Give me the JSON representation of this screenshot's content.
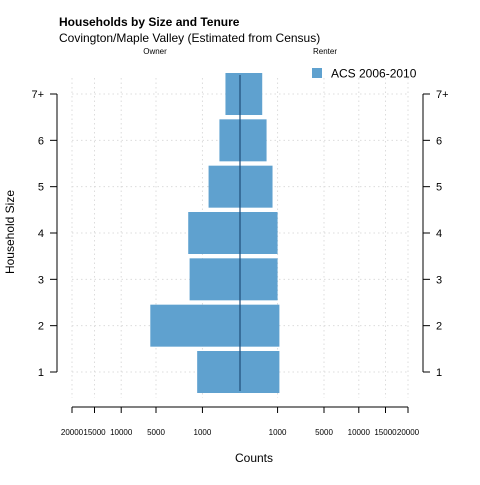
{
  "chart_data": {
    "type": "bar",
    "orientation": "horizontal",
    "layout": "back-to-back population pyramid",
    "title": "Households by Size and Tenure",
    "subtitle": "Covington/Maple Valley (Estimated from Census)",
    "left_group_label": "Owner",
    "right_group_label": "Renter",
    "xlabel": "Counts",
    "ylabel": "Household Size",
    "categories": [
      "1",
      "2",
      "3",
      "4",
      "5",
      "6",
      "7+"
    ],
    "x_tick_labels_left": [
      "20000",
      "15000",
      "10000",
      "5000",
      "1000"
    ],
    "x_tick_labels_right": [
      "1000",
      "5000",
      "10000",
      "15000",
      "20000"
    ],
    "xlim": [
      0,
      20000
    ],
    "x_scale": "sqrt",
    "series": [
      {
        "name": "ACS 2006-2010",
        "color": "#5fa1cf",
        "owner": [
          1300,
          5700,
          1800,
          1900,
          700,
          300,
          150
        ],
        "renter": [
          1100,
          1100,
          1000,
          1000,
          750,
          500,
          350
        ]
      }
    ],
    "reference_line": {
      "color": "#1f4e79"
    },
    "legend_position": "top-right",
    "grid": true
  }
}
